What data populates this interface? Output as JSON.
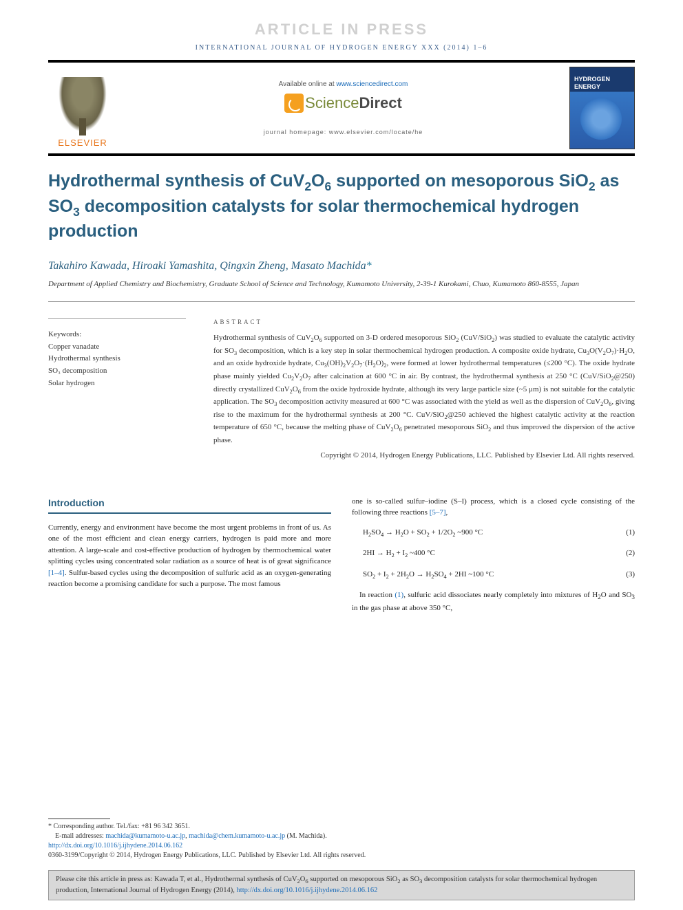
{
  "watermark": "ARTICLE IN PRESS",
  "running_head": "INTERNATIONAL JOURNAL OF HYDROGEN ENERGY XXX (2014) 1–6",
  "header": {
    "elsevier": "ELSEVIER",
    "available": "Available online at ",
    "available_link": "www.sciencedirect.com",
    "sd_sci": "Science",
    "sd_dir": "Direct",
    "homepage": "journal homepage: www.elsevier.com/locate/he"
  },
  "title_html": "Hydrothermal synthesis of CuV<sub>2</sub>O<sub>6</sub> supported on mesoporous SiO<sub>2</sub> as SO<sub>3</sub> decomposition catalysts for solar thermochemical hydrogen production",
  "authors": "Takahiro Kawada, Hiroaki Yamashita, Qingxin Zheng, Masato Machida",
  "author_ast": "*",
  "affiliation": "Department of Applied Chemistry and Biochemistry, Graduate School of Science and Technology, Kumamoto University, 2-39-1 Kurokami, Chuo, Kumamoto 860-8555, Japan",
  "keywords": {
    "head": "Keywords:",
    "items": [
      "Copper vanadate",
      "Hydrothermal synthesis",
      "SO₃ decomposition",
      "Solar hydrogen"
    ]
  },
  "abstract": {
    "head": "ABSTRACT",
    "body_html": "Hydrothermal synthesis of CuV<sub>2</sub>O<sub>6</sub> supported on 3-D ordered mesoporous SiO<sub>2</sub> (CuV/SiO<sub>2</sub>) was studied to evaluate the catalytic activity for SO<sub>3</sub> decomposition, which is a key step in solar thermochemical hydrogen production. A composite oxide hydrate, Cu<sub>3</sub>O(V<sub>2</sub>O<sub>7</sub>)·H<sub>2</sub>O, and an oxide hydroxide hydrate, Cu<sub>3</sub>(OH)<sub>2</sub>V<sub>2</sub>O<sub>7</sub>·(H<sub>2</sub>O)<sub>2</sub>, were formed at lower hydrothermal temperatures (≤200 °C). The oxide hydrate phase mainly yielded Cu<sub>2</sub>V<sub>2</sub>O<sub>7</sub> after calcination at 600 °C in air. By contrast, the hydrothermal synthesis at 250 °C (CuV/SiO<sub>2</sub>@250) directly crystallized CuV<sub>2</sub>O<sub>6</sub> from the oxide hydroxide hydrate, although its very large particle size (~5 μm) is not suitable for the catalytic application. The SO<sub>3</sub> decomposition activity measured at 600 °C was associated with the yield as well as the dispersion of CuV<sub>2</sub>O<sub>6</sub>, giving rise to the maximum for the hydrothermal synthesis at 200 °C. CuV/SiO<sub>2</sub>@250 achieved the highest catalytic activity at the reaction temperature of 650 °C, because the melting phase of CuV<sub>2</sub>O<sub>6</sub> penetrated mesoporous SiO<sub>2</sub> and thus improved the dispersion of the active phase.",
    "copyright": "Copyright © 2014, Hydrogen Energy Publications, LLC. Published by Elsevier Ltd. All rights reserved."
  },
  "intro": {
    "head": "Introduction",
    "col1_html": "Currently, energy and environment have become the most urgent problems in front of us. As one of the most efficient and clean energy carriers, hydrogen is paid more and more attention. A large-scale and cost-effective production of hydrogen by thermochemical water splitting cycles using concentrated solar radiation as a source of heat is of great significance <a class=\"ref\" href=\"#\">[1–4]</a>. Sulfur-based cycles using the decomposition of sulfuric acid as an oxygen-generating reaction become a promising candidate for such a purpose. The most famous",
    "col2_lead_html": "one is so-called sulfur–iodine (S–I) process, which is a closed cycle consisting of the following three reactions <a class=\"ref\" href=\"#\">[5–7]</a>,",
    "equations": [
      {
        "lhs_html": "H<sub>2</sub>SO<sub>4</sub> → H<sub>2</sub>O + SO<sub>2</sub> + 1/2O<sub>2</sub> ~900 °C",
        "num": "(1)"
      },
      {
        "lhs_html": "2HI → H<sub>2</sub> + I<sub>2</sub> ~400 °C",
        "num": "(2)"
      },
      {
        "lhs_html": "SO<sub>2</sub> + I<sub>2</sub> + 2H<sub>2</sub>O → H<sub>2</sub>SO<sub>4</sub> + 2HI ~100 °C",
        "num": "(3)"
      }
    ],
    "col2_tail_html": "In reaction <a class=\"ref\" href=\"#\">(1)</a>, sulfuric acid dissociates nearly completely into mixtures of H<sub>2</sub>O and SO<sub>3</sub> in the gas phase at above 350 °C,"
  },
  "footer": {
    "corresponding": "* Corresponding author. Tel./fax: +81 96 342 3651.",
    "email_label": "E-mail addresses: ",
    "email1": "machida@kumamoto-u.ac.jp",
    "email2": "machida@chem.kumamoto-u.ac.jp",
    "email_suffix": " (M. Machida).",
    "doi": "http://dx.doi.org/10.1016/j.ijhydene.2014.06.162",
    "issn_line": "0360-3199/Copyright © 2014, Hydrogen Energy Publications, LLC. Published by Elsevier Ltd. All rights reserved."
  },
  "cite_box_html": "Please cite this article in press as: Kawada T, et al., Hydrothermal synthesis of CuV<sub>2</sub>O<sub>6</sub> supported on mesoporous SiO<sub>2</sub> as SO<sub>3</sub> decomposition catalysts for solar thermochemical hydrogen production, International Journal of Hydrogen Energy (2014), <a href=\"#\">http://dx.doi.org/10.1016/j.ijhydene.2014.06.162</a>",
  "colors": {
    "heading_blue": "#2a5f7f",
    "link_blue": "#1a6bb8",
    "elsevier_orange": "#e8751a",
    "watermark_gray": "#d0d0d0",
    "cite_bg": "#d8d8d8"
  }
}
